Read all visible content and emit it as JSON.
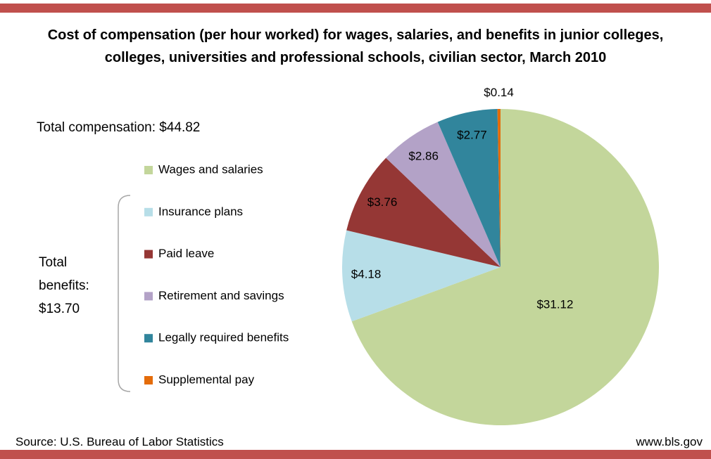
{
  "chart_data": {
    "type": "pie",
    "title": "Cost of compensation (per hour worked) for wages, salaries, and benefits in junior colleges, colleges, universities and professional schools, civilian sector, March 2010",
    "categories": [
      "Wages and salaries",
      "Insurance plans",
      "Paid leave",
      "Retirement and savings",
      "Legally required benefits",
      "Supplemental pay"
    ],
    "values": [
      31.12,
      4.18,
      3.76,
      2.86,
      2.77,
      0.14
    ],
    "value_labels": [
      "$31.12",
      "$4.18",
      "$3.76",
      "$2.86",
      "$2.77",
      "$0.14"
    ],
    "colors": [
      "#c3d69b",
      "#b7dee8",
      "#953735",
      "#b3a2c7",
      "#31859c",
      "#e46c0a"
    ],
    "annotations": {
      "total_compensation": "Total compensation:  $44.82",
      "total_benefits": "Total benefits: $13.70",
      "source": "Source: U.S. Bureau of Labor Statistics",
      "website": "www.bls.gov"
    }
  }
}
